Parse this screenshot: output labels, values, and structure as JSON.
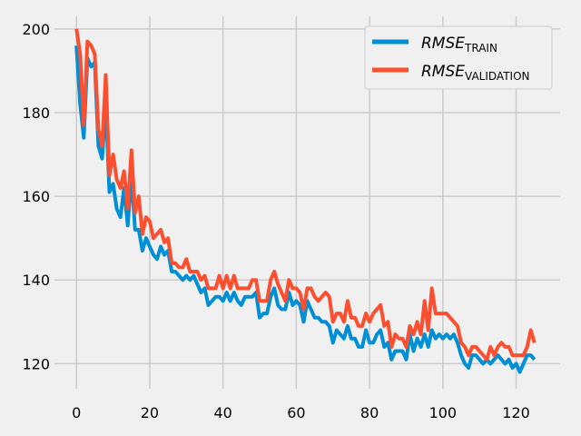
{
  "chart_data": {
    "type": "line",
    "title": "",
    "xlabel": "",
    "ylabel": "",
    "xlim": [
      -6,
      132
    ],
    "ylim": [
      114,
      203
    ],
    "xticks": [
      0,
      20,
      40,
      60,
      80,
      100,
      120
    ],
    "yticks": [
      120,
      140,
      160,
      180,
      200
    ],
    "grid": true,
    "legend_position": "upper-right",
    "x": [
      0,
      1,
      2,
      3,
      4,
      5,
      6,
      7,
      8,
      9,
      10,
      11,
      12,
      13,
      14,
      15,
      16,
      17,
      18,
      19,
      20,
      21,
      22,
      23,
      24,
      25,
      26,
      27,
      28,
      29,
      30,
      31,
      32,
      33,
      34,
      35,
      36,
      37,
      38,
      39,
      40,
      41,
      42,
      43,
      44,
      45,
      46,
      47,
      48,
      49,
      50,
      51,
      52,
      53,
      54,
      55,
      56,
      57,
      58,
      59,
      60,
      61,
      62,
      63,
      64,
      65,
      66,
      67,
      68,
      69,
      70,
      71,
      72,
      73,
      74,
      75,
      76,
      77,
      78,
      79,
      80,
      81,
      82,
      83,
      84,
      85,
      86,
      87,
      88,
      89,
      90,
      91,
      92,
      93,
      94,
      95,
      96,
      97,
      98,
      99,
      100,
      101,
      102,
      103,
      104,
      105,
      106,
      107,
      108,
      109,
      110,
      111,
      112,
      113,
      114,
      115,
      116,
      117,
      118,
      119,
      120,
      121,
      122,
      123,
      124,
      125
    ],
    "series": [
      {
        "name": "RMSE_TRAIN",
        "label_base": "RMSE",
        "label_sub": "TRAIN",
        "color": "#008fd5",
        "values": [
          196,
          182,
          174,
          193,
          191,
          192,
          172,
          169,
          182,
          161,
          163,
          157,
          155,
          162,
          153,
          165,
          152,
          152,
          147,
          150,
          148,
          146,
          145,
          148,
          146,
          147,
          142,
          142,
          141,
          140,
          141,
          140,
          141,
          139,
          137,
          138,
          134,
          135,
          136,
          136,
          135,
          137,
          135,
          137,
          135,
          134,
          136,
          136,
          136,
          137,
          131,
          132,
          132,
          136,
          138,
          134,
          133,
          133,
          137,
          134,
          135,
          134,
          130,
          135,
          133,
          131,
          131,
          130,
          130,
          129,
          125,
          128,
          127,
          126,
          129,
          126,
          126,
          124,
          124,
          128,
          125,
          125,
          127,
          128,
          124,
          125,
          121,
          123,
          123,
          123,
          121,
          127,
          123,
          126,
          124,
          127,
          124,
          128,
          126,
          127,
          126,
          127,
          126,
          127,
          125,
          122,
          120,
          119,
          122,
          122,
          121,
          120,
          121,
          120,
          121,
          122,
          121,
          120,
          121,
          119,
          120,
          118,
          120,
          122,
          122,
          121
        ]
      },
      {
        "name": "RMSE_VALIDATION",
        "label_base": "RMSE",
        "label_sub": "VALIDATION",
        "color": "#fc4f30",
        "values": [
          200,
          194,
          177,
          197,
          196,
          194,
          176,
          172,
          189,
          165,
          170,
          164,
          162,
          166,
          157,
          171,
          156,
          160,
          151,
          155,
          154,
          150,
          151,
          152,
          149,
          150,
          144,
          144,
          143,
          143,
          145,
          142,
          142,
          142,
          140,
          141,
          138,
          138,
          138,
          141,
          138,
          141,
          138,
          141,
          138,
          138,
          138,
          138,
          140,
          140,
          135,
          135,
          135,
          140,
          142,
          139,
          137,
          135,
          140,
          138,
          138,
          137,
          133,
          138,
          138,
          136,
          135,
          136,
          137,
          136,
          130,
          132,
          132,
          130,
          135,
          131,
          131,
          129,
          129,
          132,
          130,
          132,
          133,
          134,
          129,
          130,
          124,
          127,
          126,
          126,
          124,
          129,
          127,
          130,
          127,
          135,
          128,
          138,
          132,
          132,
          132,
          132,
          131,
          130,
          129,
          125,
          124,
          122,
          124,
          124,
          123,
          122,
          121,
          124,
          122,
          124,
          125,
          124,
          124,
          122,
          122,
          122,
          122,
          124,
          128,
          125
        ]
      }
    ]
  }
}
